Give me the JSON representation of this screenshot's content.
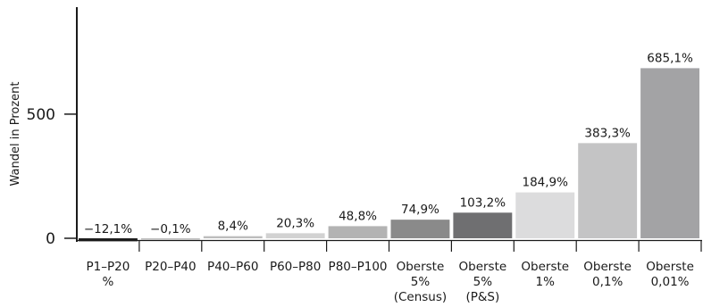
{
  "chart_data": {
    "type": "bar",
    "ylabel": "Wandel in Prozent",
    "ylim": [
      -12.1,
      700
    ],
    "yticks": [
      0,
      500
    ],
    "ytick_labels": [
      "0",
      "500"
    ],
    "grid": false,
    "categories": [
      [
        "P1–P20",
        "%"
      ],
      [
        "P20–P40"
      ],
      [
        "P40–P60"
      ],
      [
        "P60–P80"
      ],
      [
        "P80–P100"
      ],
      [
        "Oberste",
        "5%",
        "(Census)"
      ],
      [
        "Oberste",
        "5%",
        "(P&S)"
      ],
      [
        "Oberste",
        "1%"
      ],
      [
        "Oberste",
        "0,1%"
      ],
      [
        "Oberste",
        "0,01%"
      ]
    ],
    "values": [
      -12.1,
      -0.1,
      8.4,
      20.3,
      48.8,
      74.9,
      103.2,
      184.9,
      383.3,
      685.1
    ],
    "value_labels": [
      "−12,1%",
      "−0,1%",
      "8,4%",
      "20,3%",
      "48,8%",
      "74,9%",
      "103,2%",
      "184,9%",
      "383,3%",
      "685,1%"
    ],
    "colors": [
      "#1e1e1e",
      "#bdbdbd",
      "#bdbdbd",
      "#d2d2d2",
      "#b3b3b3",
      "#8a8a8a",
      "#6f6f71",
      "#dcdcdd",
      "#c4c4c5",
      "#a3a3a5"
    ]
  }
}
